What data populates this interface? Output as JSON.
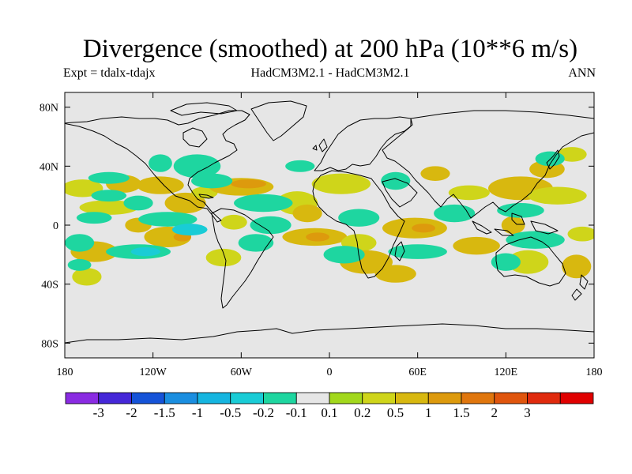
{
  "title": "Divergence (smoothed) at 200 hPa (10**6 m/s)",
  "subtitle_left": "Expt = tdalx-tdajx",
  "subtitle_center": "HadCM3M2.1 - HadCM3M2.1",
  "subtitle_right": "ANN",
  "map": {
    "projection": "cylindrical equidistant",
    "lon_range": [
      -180,
      180
    ],
    "lat_range": [
      -90,
      90
    ],
    "background_color": "#e6e6e6",
    "x_ticks": [
      {
        "lon": -180,
        "label": "180"
      },
      {
        "lon": -120,
        "label": "120W"
      },
      {
        "lon": -60,
        "label": "60W"
      },
      {
        "lon": 0,
        "label": "0"
      },
      {
        "lon": 60,
        "label": "60E"
      },
      {
        "lon": 120,
        "label": "120E"
      },
      {
        "lon": 180,
        "label": "180"
      }
    ],
    "y_ticks": [
      {
        "lat": 80,
        "label": "80N"
      },
      {
        "lat": 40,
        "label": "40N"
      },
      {
        "lat": 0,
        "label": "0"
      },
      {
        "lat": -40,
        "label": "40S"
      },
      {
        "lat": -80,
        "label": "80S"
      }
    ]
  },
  "colorbar": {
    "colors": [
      "#8a2be2",
      "#4527d8",
      "#1553d8",
      "#1a8ee0",
      "#15b5e0",
      "#19ccd6",
      "#1ed6a0",
      "#e6e6e6",
      "#a2d81c",
      "#cfd51a",
      "#d8b80f",
      "#dd9a0d",
      "#e0760d",
      "#e0550d",
      "#e02a0d",
      "#e00000"
    ],
    "labels": [
      "-3",
      "-2",
      "-1.5",
      "-1",
      "-0.5",
      "-0.2",
      "-0.1",
      "0.1",
      "0.2",
      "0.5",
      "1",
      "1.5",
      "2",
      "3"
    ]
  },
  "field_blobs": [
    {
      "lon": -168,
      "lat": 25,
      "rx": 14,
      "ry": 6,
      "level": 0.2
    },
    {
      "lon": -140,
      "lat": 28,
      "rx": 12,
      "ry": 6,
      "level": 0.5
    },
    {
      "lon": -150,
      "lat": 12,
      "rx": 20,
      "ry": 5,
      "level": 0.2
    },
    {
      "lon": -115,
      "lat": 27,
      "rx": 16,
      "ry": 6,
      "level": 0.5
    },
    {
      "lon": -98,
      "lat": 15,
      "rx": 14,
      "ry": 7,
      "level": 0.5
    },
    {
      "lon": -85,
      "lat": 22,
      "rx": 9,
      "ry": 4,
      "level": 0.2
    },
    {
      "lon": -60,
      "lat": 26,
      "rx": 22,
      "ry": 6,
      "level": 0.5
    },
    {
      "lon": -55,
      "lat": 28,
      "rx": 12,
      "ry": 3,
      "level": 1
    },
    {
      "lon": -22,
      "lat": 15,
      "rx": 14,
      "ry": 8,
      "level": 0.2
    },
    {
      "lon": -15,
      "lat": 8,
      "rx": 10,
      "ry": 6,
      "level": 0.5
    },
    {
      "lon": 8,
      "lat": 28,
      "rx": 20,
      "ry": 7,
      "level": 0.2
    },
    {
      "lon": 72,
      "lat": 35,
      "rx": 10,
      "ry": 5,
      "level": 0.5
    },
    {
      "lon": 95,
      "lat": 22,
      "rx": 14,
      "ry": 5,
      "level": 0.2
    },
    {
      "lon": 130,
      "lat": 25,
      "rx": 22,
      "ry": 8,
      "level": 0.5
    },
    {
      "lon": 148,
      "lat": 38,
      "rx": 12,
      "ry": 6,
      "level": 0.5
    },
    {
      "lon": 155,
      "lat": 20,
      "rx": 20,
      "ry": 6,
      "level": 0.2
    },
    {
      "lon": 165,
      "lat": 48,
      "rx": 10,
      "ry": 5,
      "level": 0.2
    },
    {
      "lon": -130,
      "lat": 0,
      "rx": 9,
      "ry": 5,
      "level": 0.5
    },
    {
      "lon": -65,
      "lat": 2,
      "rx": 9,
      "ry": 5,
      "level": 0.2
    },
    {
      "lon": 58,
      "lat": -2,
      "rx": 22,
      "ry": 7,
      "level": 0.5
    },
    {
      "lon": 64,
      "lat": -2,
      "rx": 8,
      "ry": 3,
      "level": 1
    },
    {
      "lon": 125,
      "lat": 0,
      "rx": 8,
      "ry": 6,
      "level": 0.5
    },
    {
      "lon": 172,
      "lat": -6,
      "rx": 10,
      "ry": 5,
      "level": 0.2
    },
    {
      "lon": -160,
      "lat": -18,
      "rx": 16,
      "ry": 7,
      "level": 0.5
    },
    {
      "lon": -110,
      "lat": -8,
      "rx": 16,
      "ry": 7,
      "level": 0.5
    },
    {
      "lon": -100,
      "lat": -8,
      "rx": 6,
      "ry": 3,
      "level": 1
    },
    {
      "lon": -72,
      "lat": -22,
      "rx": 12,
      "ry": 6,
      "level": 0.2
    },
    {
      "lon": -10,
      "lat": -8,
      "rx": 22,
      "ry": 6,
      "level": 0.5
    },
    {
      "lon": -8,
      "lat": -8,
      "rx": 8,
      "ry": 3,
      "level": 1
    },
    {
      "lon": 20,
      "lat": -12,
      "rx": 12,
      "ry": 6,
      "level": 0.2
    },
    {
      "lon": 25,
      "lat": -25,
      "rx": 18,
      "ry": 8,
      "level": 0.5
    },
    {
      "lon": 45,
      "lat": -33,
      "rx": 14,
      "ry": 6,
      "level": 0.5
    },
    {
      "lon": 100,
      "lat": -14,
      "rx": 16,
      "ry": 6,
      "level": 0.5
    },
    {
      "lon": 135,
      "lat": -25,
      "rx": 14,
      "ry": 8,
      "level": 0.2
    },
    {
      "lon": 168,
      "lat": -28,
      "rx": 10,
      "ry": 8,
      "level": 0.5
    },
    {
      "lon": -165,
      "lat": -35,
      "rx": 10,
      "ry": 6,
      "level": 0.2
    },
    {
      "lon": -150,
      "lat": 32,
      "rx": 14,
      "ry": 4,
      "level": -0.2
    },
    {
      "lon": -115,
      "lat": 42,
      "rx": 8,
      "ry": 6,
      "level": -0.2
    },
    {
      "lon": -90,
      "lat": 40,
      "rx": 16,
      "ry": 8,
      "level": -0.2
    },
    {
      "lon": -150,
      "lat": 20,
      "rx": 12,
      "ry": 4,
      "level": -0.2
    },
    {
      "lon": -130,
      "lat": 15,
      "rx": 10,
      "ry": 5,
      "level": -0.2
    },
    {
      "lon": -80,
      "lat": 30,
      "rx": 14,
      "ry": 5,
      "level": -0.2
    },
    {
      "lon": -45,
      "lat": 15,
      "rx": 20,
      "ry": 6,
      "level": -0.2
    },
    {
      "lon": -30,
      "lat": 43,
      "rx": 14,
      "ry": 5,
      "level": -0.1
    },
    {
      "lon": -20,
      "lat": 40,
      "rx": 10,
      "ry": 4,
      "level": -0.2
    },
    {
      "lon": 30,
      "lat": 55,
      "rx": 12,
      "ry": 5,
      "level": -0.1
    },
    {
      "lon": 45,
      "lat": 30,
      "rx": 10,
      "ry": 6,
      "level": -0.2
    },
    {
      "lon": 100,
      "lat": 38,
      "rx": 16,
      "ry": 5,
      "level": -0.1
    },
    {
      "lon": 130,
      "lat": 10,
      "rx": 16,
      "ry": 5,
      "level": -0.2
    },
    {
      "lon": 150,
      "lat": 45,
      "rx": 10,
      "ry": 5,
      "level": -0.2
    },
    {
      "lon": -160,
      "lat": 5,
      "rx": 12,
      "ry": 4,
      "level": -0.2
    },
    {
      "lon": -110,
      "lat": 4,
      "rx": 20,
      "ry": 5,
      "level": -0.2
    },
    {
      "lon": -95,
      "lat": -3,
      "rx": 12,
      "ry": 4,
      "level": -0.5
    },
    {
      "lon": -40,
      "lat": 0,
      "rx": 14,
      "ry": 6,
      "level": -0.2
    },
    {
      "lon": 20,
      "lat": 5,
      "rx": 14,
      "ry": 6,
      "level": -0.2
    },
    {
      "lon": 85,
      "lat": 8,
      "rx": 14,
      "ry": 6,
      "level": -0.2
    },
    {
      "lon": 140,
      "lat": -10,
      "rx": 20,
      "ry": 6,
      "level": -0.2
    },
    {
      "lon": -170,
      "lat": -12,
      "rx": 10,
      "ry": 6,
      "level": -0.2
    },
    {
      "lon": -130,
      "lat": -18,
      "rx": 22,
      "ry": 5,
      "level": -0.2
    },
    {
      "lon": -125,
      "lat": -18,
      "rx": 10,
      "ry": 3,
      "level": -0.5
    },
    {
      "lon": -50,
      "lat": -12,
      "rx": 12,
      "ry": 6,
      "level": -0.2
    },
    {
      "lon": 10,
      "lat": -20,
      "rx": 14,
      "ry": 6,
      "level": -0.2
    },
    {
      "lon": 60,
      "lat": -18,
      "rx": 20,
      "ry": 5,
      "level": -0.2
    },
    {
      "lon": 120,
      "lat": -25,
      "rx": 10,
      "ry": 6,
      "level": -0.2
    },
    {
      "lon": -170,
      "lat": -27,
      "rx": 8,
      "ry": 4,
      "level": -0.2
    }
  ]
}
